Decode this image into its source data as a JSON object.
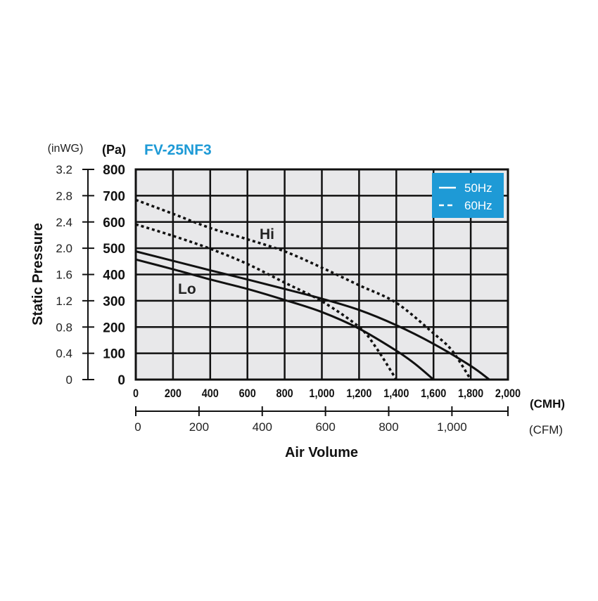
{
  "chart_data": {
    "type": "line",
    "title": "FV-25NF3",
    "title_color": "#1e9ad6",
    "ylabel": "Static Pressure",
    "xlabel": "Air Volume",
    "y_unit_primary": "(Pa)",
    "y_unit_secondary": "(inWG)",
    "x_unit_primary": "(CMH)",
    "x_unit_secondary": "(CFM)",
    "xlim": [
      0,
      2000
    ],
    "ylim": [
      0,
      800
    ],
    "grid": true,
    "x_ticks": [
      "0",
      "200",
      "400",
      "600",
      "800",
      "1,000",
      "1,200",
      "1,400",
      "1,600",
      "1,800",
      "2,000"
    ],
    "y_ticks": [
      "0",
      "100",
      "200",
      "300",
      "400",
      "500",
      "600",
      "700",
      "800"
    ],
    "y_ticks_secondary": [
      "0",
      "0.4",
      "0.8",
      "1.2",
      "1.6",
      "2.0",
      "2.4",
      "2.8",
      "3.2"
    ],
    "x_ticks_secondary": [
      "0",
      "200",
      "400",
      "600",
      "800",
      "1,000"
    ],
    "legend": {
      "placement": "top-right",
      "background": "#1e9ad6",
      "entries": [
        {
          "label": "50Hz",
          "style": "solid"
        },
        {
          "label": "60Hz",
          "style": "dashed"
        }
      ]
    },
    "annotations": [
      {
        "text": "Hi"
      },
      {
        "text": "Lo"
      }
    ],
    "series": [
      {
        "name": "50Hz",
        "speed": "Hi",
        "style": "solid",
        "x": [
          0,
          200,
          400,
          600,
          800,
          1000,
          1200,
          1400,
          1600,
          1800,
          1900
        ],
        "y": [
          488,
          452,
          416,
          381,
          345,
          308,
          265,
          207,
          136,
          52,
          0
        ]
      },
      {
        "name": "50Hz",
        "speed": "Lo",
        "style": "solid",
        "x": [
          0,
          200,
          400,
          600,
          800,
          1000,
          1200,
          1400,
          1500,
          1600
        ],
        "y": [
          457,
          420,
          381,
          345,
          303,
          257,
          194,
          110,
          60,
          0
        ]
      },
      {
        "name": "60Hz",
        "speed": "Hi",
        "style": "dashed",
        "x": [
          0,
          200,
          400,
          600,
          800,
          1000,
          1200,
          1400,
          1600,
          1700,
          1800
        ],
        "y": [
          684,
          631,
          577,
          534,
          488,
          426,
          359,
          292,
          176,
          110,
          0
        ]
      },
      {
        "name": "60Hz",
        "speed": "Lo",
        "style": "dashed",
        "x": [
          0,
          200,
          400,
          600,
          800,
          1000,
          1200,
          1290,
          1400
        ],
        "y": [
          591,
          547,
          498,
          440,
          369,
          298,
          200,
          123,
          0
        ]
      }
    ]
  }
}
